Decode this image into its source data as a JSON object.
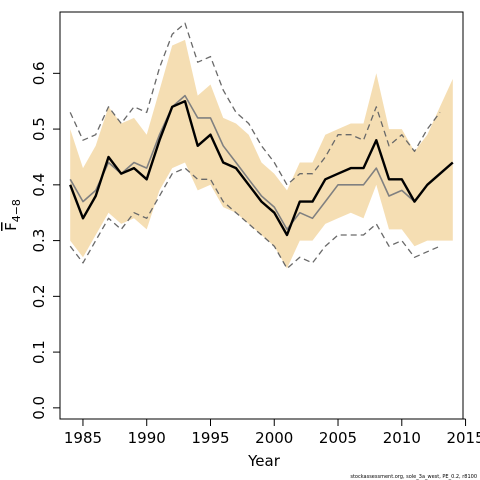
{
  "chart_data": {
    "type": "line",
    "xlabel": "Year",
    "ylabel": {
      "base": "F",
      "subscript": "4−8"
    },
    "credit": "stockassessment.org, sole_3a_west, PE_0.2, r8100",
    "xlim": [
      1983.2,
      2014.8
    ],
    "ylim": [
      -0.02,
      0.71
    ],
    "x_ticks": [
      1985,
      1990,
      1995,
      2000,
      2005,
      2010,
      2015
    ],
    "y_ticks": [
      0.0,
      0.1,
      0.2,
      0.3,
      0.4,
      0.5,
      0.6
    ],
    "y_tick_labels": [
      "0.0",
      "0.1",
      "0.2",
      "0.3",
      "0.4",
      "0.5",
      "0.6"
    ],
    "grid": false,
    "colors": {
      "band": "#f5deb3",
      "main": "#000000",
      "secondary": "#808080",
      "dashed": "#696969"
    },
    "x": [
      1984,
      1985,
      1986,
      1987,
      1988,
      1989,
      1990,
      1991,
      1992,
      1993,
      1994,
      1995,
      1996,
      1997,
      1998,
      1999,
      2000,
      2001,
      2002,
      2003,
      2004,
      2005,
      2006,
      2007,
      2008,
      2009,
      2010,
      2011,
      2012,
      2013,
      2014
    ],
    "series": [
      {
        "role": "band",
        "upper": [
          0.5,
          0.43,
          0.47,
          0.54,
          0.51,
          0.52,
          0.49,
          0.57,
          0.65,
          0.66,
          0.56,
          0.58,
          0.52,
          0.51,
          0.49,
          0.44,
          0.42,
          0.39,
          0.44,
          0.44,
          0.49,
          0.5,
          0.51,
          0.51,
          0.6,
          0.5,
          0.5,
          0.46,
          0.49,
          0.54,
          0.59
        ],
        "lower": [
          0.3,
          0.27,
          0.31,
          0.35,
          0.33,
          0.34,
          0.32,
          0.39,
          0.43,
          0.44,
          0.39,
          0.4,
          0.36,
          0.35,
          0.33,
          0.31,
          0.29,
          0.25,
          0.3,
          0.3,
          0.33,
          0.34,
          0.35,
          0.34,
          0.4,
          0.32,
          0.32,
          0.29,
          0.3,
          0.3,
          0.3
        ]
      },
      {
        "role": "upper-dashed",
        "values": [
          0.53,
          0.48,
          0.49,
          0.54,
          0.51,
          0.54,
          0.53,
          0.61,
          0.67,
          0.69,
          0.62,
          0.63,
          0.57,
          0.53,
          0.51,
          0.47,
          0.44,
          0.4,
          0.42,
          0.42,
          0.45,
          0.49,
          0.49,
          0.48,
          0.54,
          0.47,
          0.49,
          0.46,
          0.5,
          0.53,
          null
        ]
      },
      {
        "role": "lower-dashed",
        "values": [
          0.29,
          0.26,
          0.3,
          0.34,
          0.32,
          0.35,
          0.34,
          0.38,
          0.42,
          0.43,
          0.41,
          0.41,
          0.37,
          0.35,
          0.33,
          0.31,
          0.29,
          0.25,
          0.27,
          0.26,
          0.29,
          0.31,
          0.31,
          0.31,
          0.33,
          0.29,
          0.3,
          0.27,
          0.28,
          0.29,
          null
        ]
      },
      {
        "role": "secondary",
        "values": [
          0.41,
          0.37,
          0.39,
          0.44,
          0.42,
          0.44,
          0.43,
          0.49,
          0.54,
          0.56,
          0.52,
          0.52,
          0.47,
          0.44,
          0.41,
          0.38,
          0.36,
          0.32,
          0.35,
          0.34,
          0.37,
          0.4,
          0.4,
          0.4,
          0.43,
          0.38,
          0.39,
          0.37,
          null,
          null,
          null
        ]
      },
      {
        "role": "main",
        "values": [
          0.4,
          0.34,
          0.38,
          0.45,
          0.42,
          0.43,
          0.41,
          0.48,
          0.54,
          0.55,
          0.47,
          0.49,
          0.44,
          0.43,
          0.4,
          0.37,
          0.35,
          0.31,
          0.37,
          0.37,
          0.41,
          0.42,
          0.43,
          0.43,
          0.48,
          0.41,
          0.41,
          0.37,
          0.4,
          0.42,
          0.44
        ]
      }
    ]
  }
}
